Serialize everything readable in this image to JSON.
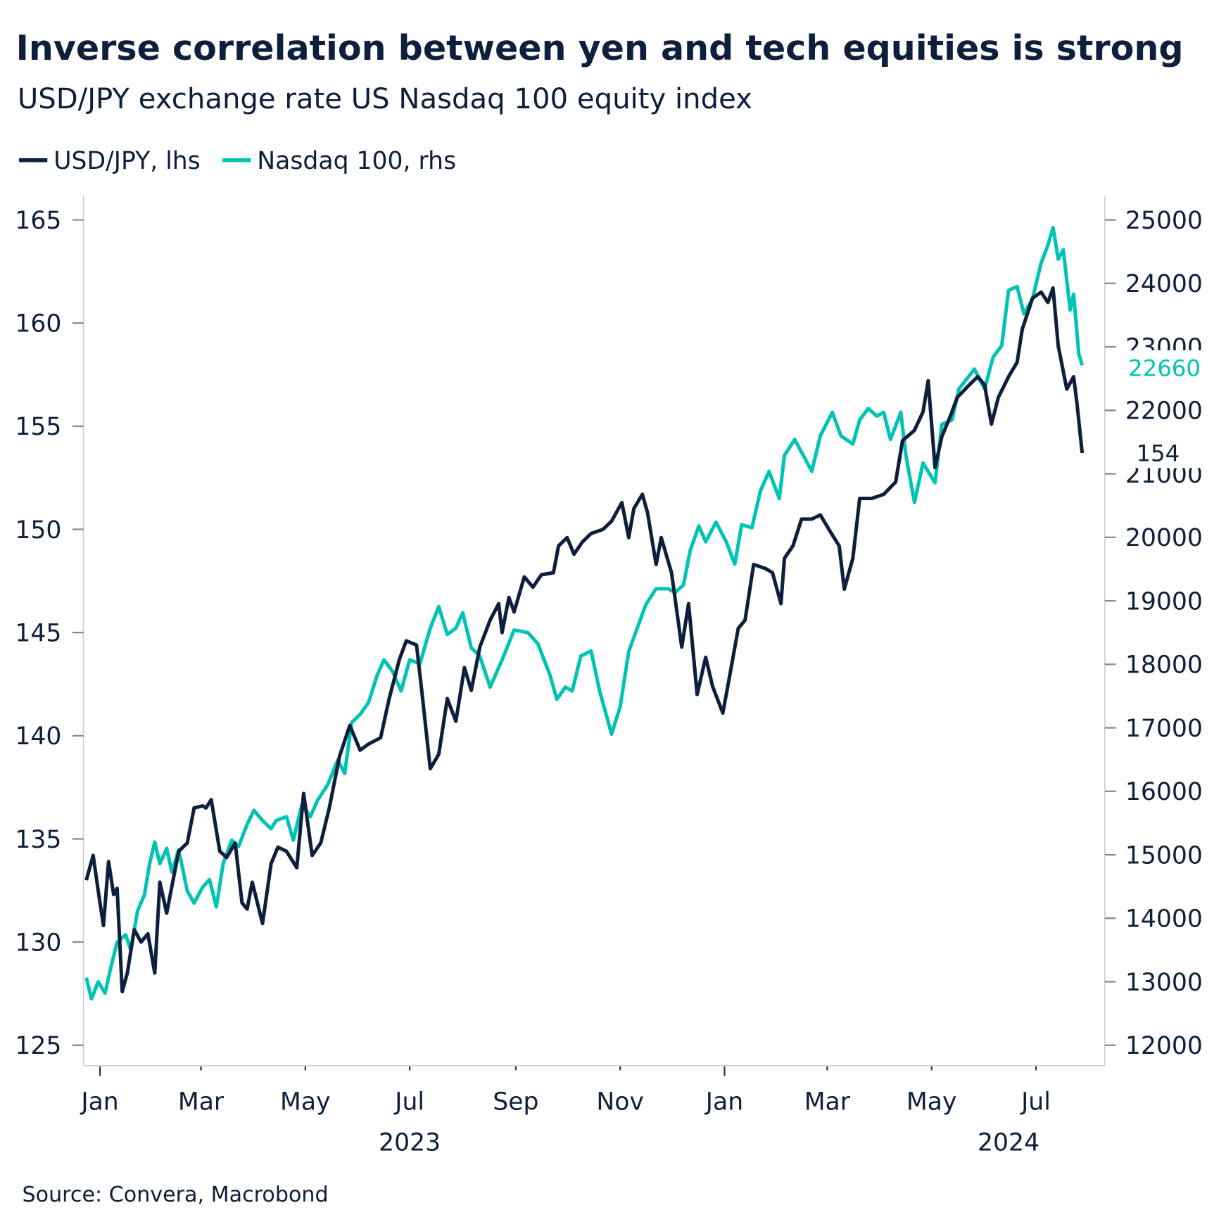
{
  "chart_data": {
    "type": "line",
    "title": "Inverse correlation between yen and tech equities is strong",
    "subtitle": "USD/JPY exchange rate US Nasdaq 100 equity index",
    "source": "Source: Convera, Macrobond",
    "legend_position": "top-left",
    "grid": false,
    "x_ticks": [
      "Jan",
      "Mar",
      "May",
      "Jul",
      "Sep",
      "Nov",
      "Jan",
      "Mar",
      "May",
      "Jul"
    ],
    "x_tick_dates": [
      "2023-01-01",
      "2023-03-01",
      "2023-05-01",
      "2023-07-01",
      "2023-09-01",
      "2023-11-01",
      "2024-01-01",
      "2024-03-01",
      "2024-05-01",
      "2024-07-01"
    ],
    "x_years": [
      {
        "label": "2023",
        "date": "2023-07-01"
      },
      {
        "label": "2024",
        "date": "2024-06-15"
      }
    ],
    "left_axis": {
      "ylim": [
        125,
        165
      ],
      "ticks": [
        165,
        160,
        155,
        150,
        145,
        140,
        135,
        130,
        125
      ]
    },
    "right_axis": {
      "ylim": [
        12000,
        25000
      ],
      "ticks": [
        25000,
        24000,
        23000,
        22000,
        21000,
        20000,
        19000,
        18000,
        17000,
        16000,
        15000,
        14000,
        13000,
        12000
      ]
    },
    "series": [
      {
        "name": "USD/JPY, lhs",
        "axis": "left",
        "color": "#0d1f3c",
        "end_label": "154",
        "points": [
          [
            "2022-12-24",
            133.0
          ],
          [
            "2022-12-28",
            134.2
          ],
          [
            "2023-01-01",
            131.9
          ],
          [
            "2023-01-03",
            130.8
          ],
          [
            "2023-01-06",
            133.9
          ],
          [
            "2023-01-09",
            132.3
          ],
          [
            "2023-01-11",
            132.6
          ],
          [
            "2023-01-14",
            127.6
          ],
          [
            "2023-01-17",
            128.5
          ],
          [
            "2023-01-21",
            130.6
          ],
          [
            "2023-01-25",
            130.0
          ],
          [
            "2023-01-29",
            130.4
          ],
          [
            "2023-02-02",
            128.5
          ],
          [
            "2023-02-05",
            132.9
          ],
          [
            "2023-02-09",
            131.4
          ],
          [
            "2023-02-12",
            132.7
          ],
          [
            "2023-02-16",
            134.4
          ],
          [
            "2023-02-21",
            134.8
          ],
          [
            "2023-02-25",
            136.5
          ],
          [
            "2023-03-02",
            136.6
          ],
          [
            "2023-03-04",
            136.5
          ],
          [
            "2023-03-07",
            136.9
          ],
          [
            "2023-03-12",
            134.4
          ],
          [
            "2023-03-16",
            134.1
          ],
          [
            "2023-03-21",
            134.8
          ],
          [
            "2023-03-25",
            131.9
          ],
          [
            "2023-03-28",
            131.6
          ],
          [
            "2023-03-31",
            132.9
          ],
          [
            "2023-04-06",
            130.9
          ],
          [
            "2023-04-11",
            133.8
          ],
          [
            "2023-04-15",
            134.6
          ],
          [
            "2023-04-20",
            134.4
          ],
          [
            "2023-04-26",
            133.6
          ],
          [
            "2023-04-30",
            137.2
          ],
          [
            "2023-05-05",
            134.2
          ],
          [
            "2023-05-10",
            134.8
          ],
          [
            "2023-05-15",
            136.5
          ],
          [
            "2023-05-21",
            139.0
          ],
          [
            "2023-05-27",
            140.5
          ],
          [
            "2023-06-02",
            139.3
          ],
          [
            "2023-06-07",
            139.6
          ],
          [
            "2023-06-14",
            139.9
          ],
          [
            "2023-06-19",
            141.8
          ],
          [
            "2023-06-25",
            143.7
          ],
          [
            "2023-06-29",
            144.6
          ],
          [
            "2023-07-05",
            144.4
          ],
          [
            "2023-07-08",
            142.2
          ],
          [
            "2023-07-13",
            138.4
          ],
          [
            "2023-07-18",
            139.1
          ],
          [
            "2023-07-23",
            141.8
          ],
          [
            "2023-07-28",
            140.7
          ],
          [
            "2023-08-02",
            143.3
          ],
          [
            "2023-08-06",
            142.2
          ],
          [
            "2023-08-11",
            144.3
          ],
          [
            "2023-08-17",
            145.6
          ],
          [
            "2023-08-22",
            146.4
          ],
          [
            "2023-08-24",
            145.0
          ],
          [
            "2023-08-28",
            146.7
          ],
          [
            "2023-08-31",
            146.0
          ],
          [
            "2023-09-06",
            147.7
          ],
          [
            "2023-09-11",
            147.2
          ],
          [
            "2023-09-16",
            147.8
          ],
          [
            "2023-09-23",
            147.9
          ],
          [
            "2023-09-26",
            149.2
          ],
          [
            "2023-10-01",
            149.6
          ],
          [
            "2023-10-05",
            148.8
          ],
          [
            "2023-10-10",
            149.4
          ],
          [
            "2023-10-15",
            149.8
          ],
          [
            "2023-10-22",
            150.0
          ],
          [
            "2023-10-27",
            150.4
          ],
          [
            "2023-11-02",
            151.3
          ],
          [
            "2023-11-06",
            149.6
          ],
          [
            "2023-11-09",
            151.0
          ],
          [
            "2023-11-14",
            151.7
          ],
          [
            "2023-11-17",
            150.8
          ],
          [
            "2023-11-22",
            148.3
          ],
          [
            "2023-11-25",
            149.6
          ],
          [
            "2023-12-01",
            147.9
          ],
          [
            "2023-12-07",
            144.3
          ],
          [
            "2023-12-11",
            146.4
          ],
          [
            "2023-12-16",
            142.0
          ],
          [
            "2023-12-21",
            143.8
          ],
          [
            "2023-12-25",
            142.4
          ],
          [
            "2023-12-31",
            141.1
          ],
          [
            "2024-01-04",
            142.9
          ],
          [
            "2024-01-09",
            145.2
          ],
          [
            "2024-01-13",
            145.6
          ],
          [
            "2024-01-18",
            148.3
          ],
          [
            "2024-01-25",
            148.1
          ],
          [
            "2024-01-29",
            147.9
          ],
          [
            "2024-02-03",
            146.4
          ],
          [
            "2024-02-05",
            148.6
          ],
          [
            "2024-02-10",
            149.2
          ],
          [
            "2024-02-15",
            150.5
          ],
          [
            "2024-02-21",
            150.5
          ],
          [
            "2024-02-26",
            150.7
          ],
          [
            "2024-03-02",
            150.0
          ],
          [
            "2024-03-08",
            149.2
          ],
          [
            "2024-03-11",
            147.1
          ],
          [
            "2024-03-16",
            148.6
          ],
          [
            "2024-03-20",
            151.5
          ],
          [
            "2024-03-27",
            151.5
          ],
          [
            "2024-04-03",
            151.7
          ],
          [
            "2024-04-10",
            152.3
          ],
          [
            "2024-04-14",
            154.3
          ],
          [
            "2024-04-21",
            154.8
          ],
          [
            "2024-04-26",
            155.7
          ],
          [
            "2024-04-29",
            157.2
          ],
          [
            "2024-05-03",
            153.0
          ],
          [
            "2024-05-07",
            154.5
          ],
          [
            "2024-05-12",
            155.5
          ],
          [
            "2024-05-16",
            156.4
          ],
          [
            "2024-05-23",
            157.0
          ],
          [
            "2024-05-28",
            157.4
          ],
          [
            "2024-06-01",
            157.0
          ],
          [
            "2024-06-05",
            155.1
          ],
          [
            "2024-06-09",
            156.4
          ],
          [
            "2024-06-15",
            157.4
          ],
          [
            "2024-06-20",
            158.1
          ],
          [
            "2024-06-23",
            159.7
          ],
          [
            "2024-06-29",
            161.2
          ],
          [
            "2024-07-04",
            161.5
          ],
          [
            "2024-07-08",
            161.0
          ],
          [
            "2024-07-11",
            161.7
          ],
          [
            "2024-07-14",
            158.9
          ],
          [
            "2024-07-19",
            156.8
          ],
          [
            "2024-07-23",
            157.4
          ],
          [
            "2024-07-25",
            156.1
          ],
          [
            "2024-07-28",
            153.7
          ]
        ]
      },
      {
        "name": "Nasdaq 100, rhs",
        "axis": "right",
        "color": "#00c4b3",
        "end_label": "22660",
        "points": [
          [
            "2022-12-24",
            13064
          ],
          [
            "2022-12-27",
            12730
          ],
          [
            "2022-12-31",
            13000
          ],
          [
            "2023-01-04",
            12820
          ],
          [
            "2023-01-07",
            13190
          ],
          [
            "2023-01-11",
            13620
          ],
          [
            "2023-01-16",
            13740
          ],
          [
            "2023-01-19",
            13500
          ],
          [
            "2023-01-23",
            14120
          ],
          [
            "2023-01-27",
            14370
          ],
          [
            "2023-01-30",
            14860
          ],
          [
            "2023-02-02",
            15200
          ],
          [
            "2023-02-05",
            14860
          ],
          [
            "2023-02-09",
            15100
          ],
          [
            "2023-02-12",
            14730
          ],
          [
            "2023-02-16",
            15080
          ],
          [
            "2023-02-21",
            14430
          ],
          [
            "2023-02-25",
            14240
          ],
          [
            "2023-03-02",
            14490
          ],
          [
            "2023-03-06",
            14610
          ],
          [
            "2023-03-10",
            14180
          ],
          [
            "2023-03-14",
            14860
          ],
          [
            "2023-03-19",
            15230
          ],
          [
            "2023-03-23",
            15130
          ],
          [
            "2023-03-28",
            15480
          ],
          [
            "2023-04-01",
            15700
          ],
          [
            "2023-04-06",
            15540
          ],
          [
            "2023-04-11",
            15410
          ],
          [
            "2023-04-14",
            15540
          ],
          [
            "2023-04-20",
            15600
          ],
          [
            "2023-04-24",
            15230
          ],
          [
            "2023-04-29",
            15790
          ],
          [
            "2023-05-04",
            15600
          ],
          [
            "2023-05-08",
            15850
          ],
          [
            "2023-05-14",
            16100
          ],
          [
            "2023-05-20",
            16490
          ],
          [
            "2023-05-24",
            16280
          ],
          [
            "2023-05-28",
            17080
          ],
          [
            "2023-06-02",
            17210
          ],
          [
            "2023-06-07",
            17400
          ],
          [
            "2023-06-12",
            17830
          ],
          [
            "2023-06-16",
            18070
          ],
          [
            "2023-06-21",
            17890
          ],
          [
            "2023-06-26",
            17580
          ],
          [
            "2023-07-01",
            18070
          ],
          [
            "2023-07-07",
            18010
          ],
          [
            "2023-07-13",
            18570
          ],
          [
            "2023-07-18",
            18910
          ],
          [
            "2023-07-23",
            18470
          ],
          [
            "2023-07-28",
            18570
          ],
          [
            "2023-08-01",
            18810
          ],
          [
            "2023-08-06",
            18260
          ],
          [
            "2023-08-11",
            18130
          ],
          [
            "2023-08-17",
            17640
          ],
          [
            "2023-08-24",
            18070
          ],
          [
            "2023-08-31",
            18540
          ],
          [
            "2023-09-08",
            18500
          ],
          [
            "2023-09-14",
            18320
          ],
          [
            "2023-09-21",
            17830
          ],
          [
            "2023-09-25",
            17450
          ],
          [
            "2023-09-30",
            17640
          ],
          [
            "2023-10-04",
            17580
          ],
          [
            "2023-10-09",
            18130
          ],
          [
            "2023-10-15",
            18210
          ],
          [
            "2023-10-20",
            17580
          ],
          [
            "2023-10-27",
            16900
          ],
          [
            "2023-11-01",
            17330
          ],
          [
            "2023-11-06",
            18200
          ],
          [
            "2023-11-11",
            18570
          ],
          [
            "2023-11-16",
            18940
          ],
          [
            "2023-11-22",
            19190
          ],
          [
            "2023-11-29",
            19190
          ],
          [
            "2023-12-03",
            19130
          ],
          [
            "2023-12-08",
            19250
          ],
          [
            "2023-12-12",
            19800
          ],
          [
            "2023-12-17",
            20180
          ],
          [
            "2023-12-21",
            19930
          ],
          [
            "2023-12-27",
            20240
          ],
          [
            "2024-01-02",
            19930
          ],
          [
            "2024-01-07",
            19580
          ],
          [
            "2024-01-11",
            20200
          ],
          [
            "2024-01-17",
            20150
          ],
          [
            "2024-01-22",
            20730
          ],
          [
            "2024-01-27",
            21040
          ],
          [
            "2024-02-02",
            20610
          ],
          [
            "2024-02-05",
            21290
          ],
          [
            "2024-02-11",
            21540
          ],
          [
            "2024-02-16",
            21290
          ],
          [
            "2024-02-21",
            21040
          ],
          [
            "2024-02-26",
            21600
          ],
          [
            "2024-03-04",
            21970
          ],
          [
            "2024-03-09",
            21600
          ],
          [
            "2024-03-16",
            21470
          ],
          [
            "2024-03-20",
            21850
          ],
          [
            "2024-03-25",
            22030
          ],
          [
            "2024-03-30",
            21910
          ],
          [
            "2024-04-03",
            21970
          ],
          [
            "2024-04-07",
            21540
          ],
          [
            "2024-04-13",
            21970
          ],
          [
            "2024-04-16",
            21290
          ],
          [
            "2024-04-21",
            20550
          ],
          [
            "2024-04-26",
            21170
          ],
          [
            "2024-05-03",
            20860
          ],
          [
            "2024-05-07",
            21780
          ],
          [
            "2024-05-13",
            21850
          ],
          [
            "2024-05-17",
            22340
          ],
          [
            "2024-05-26",
            22650
          ],
          [
            "2024-06-01",
            22340
          ],
          [
            "2024-06-06",
            22840
          ],
          [
            "2024-06-11",
            23020
          ],
          [
            "2024-06-15",
            23890
          ],
          [
            "2024-06-20",
            23950
          ],
          [
            "2024-06-24",
            23520
          ],
          [
            "2024-06-29",
            23760
          ],
          [
            "2024-07-04",
            24320
          ],
          [
            "2024-07-08",
            24600
          ],
          [
            "2024-07-11",
            24880
          ],
          [
            "2024-07-14",
            24380
          ],
          [
            "2024-07-17",
            24530
          ],
          [
            "2024-07-21",
            23580
          ],
          [
            "2024-07-23",
            23830
          ],
          [
            "2024-07-26",
            22900
          ],
          [
            "2024-07-28",
            22710
          ]
        ]
      }
    ]
  }
}
